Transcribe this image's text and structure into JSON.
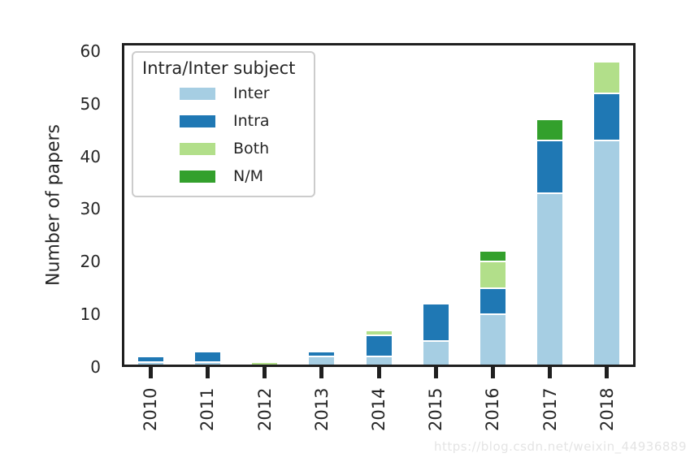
{
  "watermark": {
    "text": "https://blog.csdn.net/weixin_44936889"
  },
  "chart_data": {
    "type": "bar",
    "stacked": true,
    "title": "",
    "xlabel": "",
    "ylabel": "Number of papers",
    "categories": [
      "2010",
      "2011",
      "2012",
      "2013",
      "2014",
      "2015",
      "2016",
      "2017",
      "2018"
    ],
    "series": [
      {
        "name": "Inter",
        "color": "#a6cee3",
        "values": [
          1,
          1,
          0,
          2,
          2,
          5,
          10,
          33,
          43
        ]
      },
      {
        "name": "Intra",
        "color": "#1f78b4",
        "values": [
          1,
          2,
          0,
          1,
          4,
          7,
          5,
          10,
          9
        ]
      },
      {
        "name": "Both",
        "color": "#b2df8a",
        "values": [
          0,
          0,
          1,
          0,
          1,
          0,
          5,
          0,
          6
        ]
      },
      {
        "name": "N/M",
        "color": "#33a02c",
        "values": [
          0,
          0,
          0,
          0,
          0,
          0,
          2,
          4,
          0
        ]
      }
    ],
    "totals": [
      2,
      3,
      1,
      3,
      7,
      12,
      22,
      47,
      58
    ],
    "yticks": [
      0,
      10,
      20,
      30,
      40,
      50,
      60
    ],
    "ylim": [
      0,
      61.5
    ],
    "grid": false,
    "legend_title": "Intra/Inter subject",
    "legend_position": "upper left",
    "spine_color": "#1f1f1f",
    "text_color": "#262626"
  }
}
